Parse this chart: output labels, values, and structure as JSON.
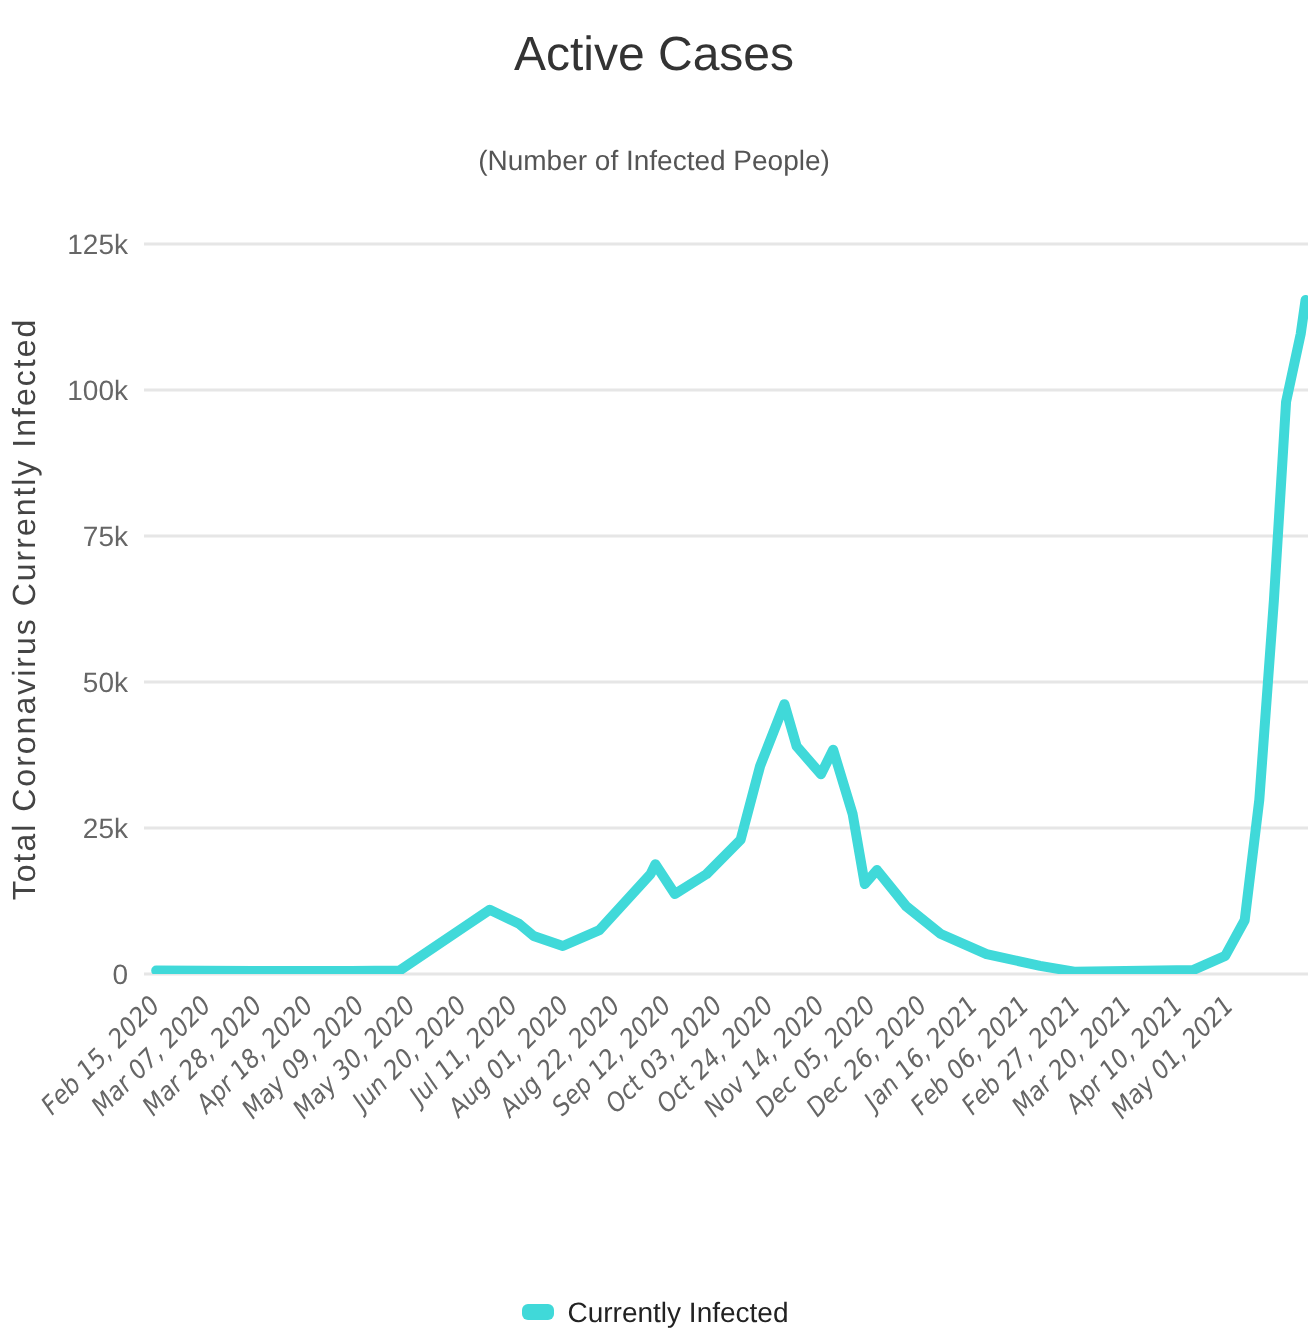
{
  "chart_data": {
    "type": "line",
    "title": "Active Cases",
    "subtitle": "(Number of Infected People)",
    "ylabel": "Total Coronavirus Currently Infected",
    "x": [
      "2020-02-15",
      "2020-03-26",
      "2020-05-05",
      "2020-05-25",
      "2020-06-21",
      "2020-07-01",
      "2020-07-13",
      "2020-07-19",
      "2020-07-31",
      "2020-08-15",
      "2020-09-05",
      "2020-09-07",
      "2020-09-15",
      "2020-09-28",
      "2020-10-12",
      "2020-10-20",
      "2020-10-30",
      "2020-11-04",
      "2020-11-14",
      "2020-11-19",
      "2020-11-27",
      "2020-12-02",
      "2020-12-07",
      "2020-12-19",
      "2021-01-02",
      "2021-01-21",
      "2021-02-12",
      "2021-02-26",
      "2021-04-16",
      "2021-04-29",
      "2021-05-07",
      "2021-05-13",
      "2021-05-19",
      "2021-05-24",
      "2021-05-30",
      "2021-06-01"
    ],
    "series": [
      {
        "name": "Currently Infected",
        "color": "#40d9d9",
        "values": [
          600,
          500,
          500,
          600,
          8200,
          11000,
          8600,
          6500,
          4800,
          7500,
          17100,
          18800,
          13700,
          17100,
          23000,
          35600,
          46200,
          39000,
          34200,
          38400,
          27400,
          15400,
          17800,
          11600,
          6900,
          3400,
          1400,
          400,
          700,
          3100,
          9200,
          29800,
          64000,
          98000,
          109600,
          115400
        ]
      }
    ],
    "xlim": [
      "2020-02-10",
      "2021-06-02"
    ],
    "xticks": [
      {
        "value": "2020-02-15",
        "label": "Feb 15, 2020"
      },
      {
        "value": "2020-03-07",
        "label": "Mar 07, 2020"
      },
      {
        "value": "2020-03-28",
        "label": "Mar 28, 2020"
      },
      {
        "value": "2020-04-18",
        "label": "Apr 18, 2020"
      },
      {
        "value": "2020-05-09",
        "label": "May 09, 2020"
      },
      {
        "value": "2020-05-30",
        "label": "May 30, 2020"
      },
      {
        "value": "2020-06-20",
        "label": "Jun 20, 2020"
      },
      {
        "value": "2020-07-11",
        "label": "Jul 11, 2020"
      },
      {
        "value": "2020-08-01",
        "label": "Aug 01, 2020"
      },
      {
        "value": "2020-08-22",
        "label": "Aug 22, 2020"
      },
      {
        "value": "2020-09-12",
        "label": "Sep 12, 2020"
      },
      {
        "value": "2020-10-03",
        "label": "Oct 03, 2020"
      },
      {
        "value": "2020-10-24",
        "label": "Oct 24, 2020"
      },
      {
        "value": "2020-11-14",
        "label": "Nov 14, 2020"
      },
      {
        "value": "2020-12-05",
        "label": "Dec 05, 2020"
      },
      {
        "value": "2020-12-26",
        "label": "Dec 26, 2020"
      },
      {
        "value": "2021-01-16",
        "label": "Jan 16, 2021"
      },
      {
        "value": "2021-02-06",
        "label": "Feb 06, 2021"
      },
      {
        "value": "2021-02-27",
        "label": "Feb 27, 2021"
      },
      {
        "value": "2021-03-20",
        "label": "Mar 20, 2021"
      },
      {
        "value": "2021-04-10",
        "label": "Apr 10, 2021"
      },
      {
        "value": "2021-05-01",
        "label": "May 01, 2021"
      }
    ],
    "ylim": [
      0,
      125000
    ],
    "yticks": [
      {
        "value": 0,
        "label": "0"
      },
      {
        "value": 25000,
        "label": "25k"
      },
      {
        "value": 50000,
        "label": "50k"
      },
      {
        "value": 75000,
        "label": "75k"
      },
      {
        "value": 100000,
        "label": "100k"
      },
      {
        "value": 125000,
        "label": "125k"
      }
    ],
    "grid": "y",
    "legend": "bottom",
    "marker": "none",
    "line_style": "solid"
  }
}
